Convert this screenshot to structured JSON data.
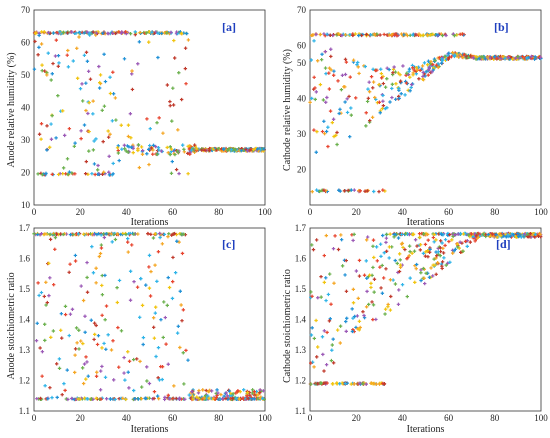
{
  "chart_data": [
    {
      "type": "scatter",
      "tag": "[a]",
      "xlabel": "Iterations",
      "ylabel": "Anode relative humidity (%)",
      "xlim": [
        0,
        100
      ],
      "ylim": [
        10,
        70
      ],
      "xticks": [
        "0",
        "20",
        "40",
        "60",
        "80",
        "100"
      ],
      "yticks": [
        "10",
        "20",
        "30",
        "40",
        "50",
        "60",
        "70"
      ],
      "pattern": "anode-humidity",
      "upper_bound": 63,
      "lower_bound": 19.5,
      "converged_value": 27,
      "point_count_estimate": 600
    },
    {
      "type": "scatter",
      "tag": "[b]",
      "xlabel": "Iterations",
      "ylabel": "Cathode relative humidity (%)",
      "xlim": [
        0,
        100
      ],
      "ylim": [
        15,
        70
      ],
      "xticks": [
        "0",
        "20",
        "40",
        "60",
        "80",
        "100"
      ],
      "yticks": [
        "20",
        "30",
        "40",
        "50",
        "60",
        "70"
      ],
      "pattern": "cathode-humidity",
      "upper_bound": 63,
      "lower_bound": 19,
      "converged_value": 56.5,
      "point_count_estimate": 600
    },
    {
      "type": "scatter",
      "tag": "[c]",
      "xlabel": "Iterations",
      "ylabel": "Anode stoichiometric ratio",
      "xlim": [
        0,
        100
      ],
      "ylim": [
        1.1,
        1.7
      ],
      "xticks": [
        "0",
        "20",
        "40",
        "60",
        "80",
        "100"
      ],
      "yticks": [
        "1.1",
        "1.2",
        "1.3",
        "1.4",
        "1.5",
        "1.6",
        "1.7"
      ],
      "pattern": "anode-stoich",
      "upper_bound": 1.68,
      "lower_bound": 1.14,
      "converged_value": 1.14,
      "point_count_estimate": 600
    },
    {
      "type": "scatter",
      "tag": "[d]",
      "xlabel": "Iterations",
      "ylabel": "Cathode stoichiometric ratio",
      "xlim": [
        0,
        100
      ],
      "ylim": [
        1.1,
        1.7
      ],
      "xticks": [
        "0",
        "20",
        "40",
        "60",
        "80",
        "100"
      ],
      "yticks": [
        "1.1",
        "1.2",
        "1.3",
        "1.4",
        "1.5",
        "1.6",
        "1.7"
      ],
      "pattern": "cathode-stoich",
      "upper_bound": 1.68,
      "lower_bound": 1.19,
      "converged_value": 1.68,
      "point_count_estimate": 600
    }
  ],
  "marker_colors": [
    "#e8442e",
    "#f5a623",
    "#2fb4e8",
    "#6ab04c",
    "#9b59b6",
    "#c0392b",
    "#f1c40f",
    "#1e90d6"
  ]
}
